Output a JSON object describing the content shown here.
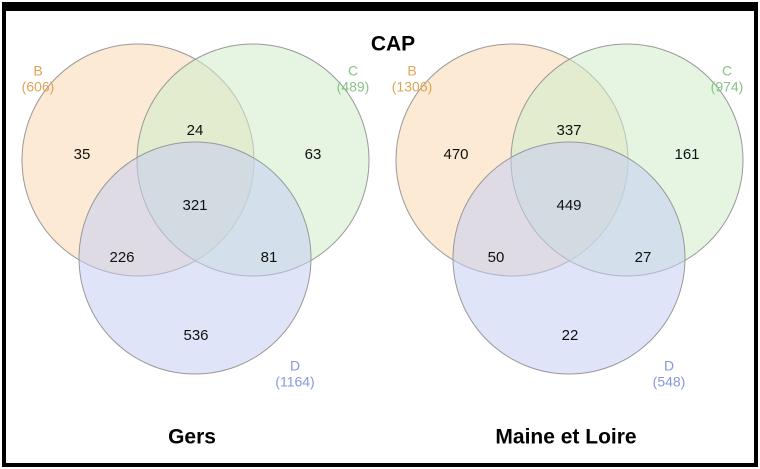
{
  "title": "CAP",
  "panels": [
    {
      "name": "Gers",
      "sets": [
        {
          "label": "B",
          "count": "(606)"
        },
        {
          "label": "C",
          "count": "(489)"
        },
        {
          "label": "D",
          "count": "(1164)"
        }
      ],
      "regions": {
        "B": "35",
        "BC": "24",
        "C": "63",
        "BCD": "321",
        "BD": "226",
        "CD": "81",
        "D": "536"
      }
    },
    {
      "name": "Maine et Loire",
      "sets": [
        {
          "label": "B",
          "count": "(1306)"
        },
        {
          "label": "C",
          "count": "(974)"
        },
        {
          "label": "D",
          "count": "(548)"
        }
      ],
      "regions": {
        "B": "470",
        "BC": "337",
        "C": "161",
        "BCD": "449",
        "BD": "50",
        "CD": "27",
        "D": "22"
      }
    }
  ]
}
